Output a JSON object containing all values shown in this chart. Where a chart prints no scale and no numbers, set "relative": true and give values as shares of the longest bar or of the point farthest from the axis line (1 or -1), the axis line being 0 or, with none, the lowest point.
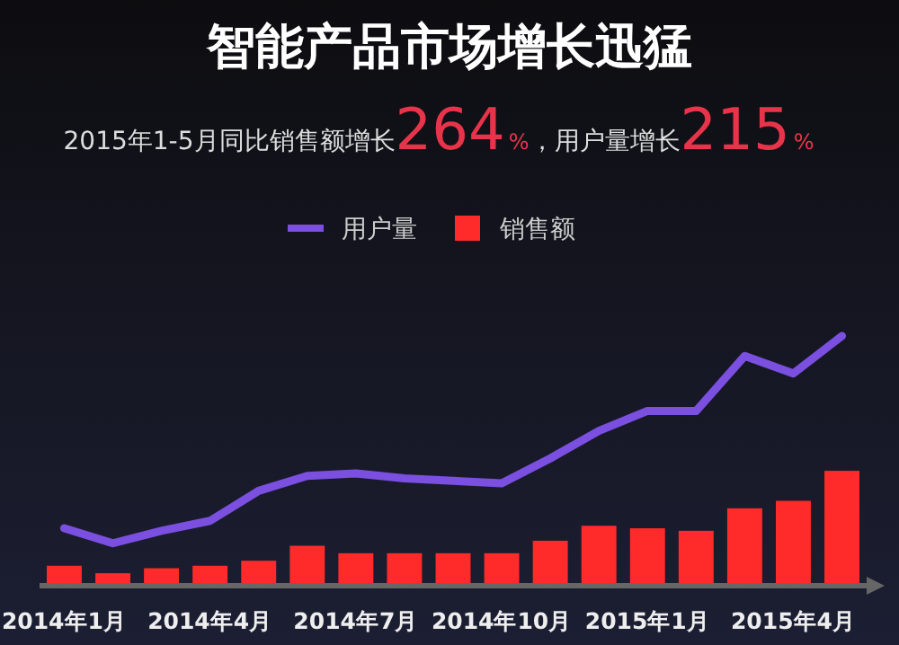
{
  "chart_data": {
    "type": "bar",
    "title": "智能产品市场增长迅猛",
    "subtitle": "2015年1-5月同比销售额增长264%，用户量增长215%",
    "relative": true,
    "legend": "top",
    "categories": [
      "2014年1月",
      null,
      null,
      "2014年4月",
      null,
      null,
      "2014年7月",
      null,
      null,
      "2014年10月",
      null,
      null,
      "2015年1月",
      null,
      null,
      "2015年4月",
      null
    ],
    "series": [
      {
        "name": "用户量",
        "type": "line",
        "color": "#7b4fe0",
        "values": [
          0.23,
          0.17,
          0.22,
          0.26,
          0.38,
          0.44,
          0.45,
          0.43,
          0.42,
          0.41,
          0.51,
          0.62,
          0.7,
          0.7,
          0.92,
          0.85,
          1
        ]
      },
      {
        "name": "销售额",
        "color": "#ff2a2a",
        "values": [
          0.08,
          0.05,
          0.07,
          0.08,
          0.1,
          0.16,
          0.13,
          0.13,
          0.13,
          0.13,
          0.18,
          0.24,
          0.23,
          0.22,
          0.31,
          0.34,
          0.46
        ]
      }
    ]
  }
}
